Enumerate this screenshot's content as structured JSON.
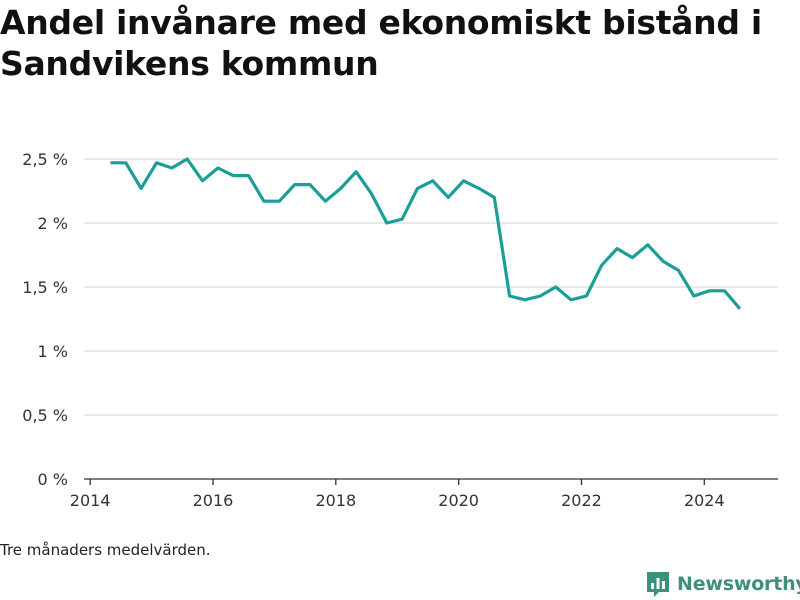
{
  "header": {
    "title": "Andel invånare med ekonomiskt bistånd i Sandvikens kommun"
  },
  "footnote": "Tre månaders medelvärden.",
  "brand": {
    "name": "Newsworthy",
    "icon": "bar-chart-logo-icon"
  },
  "colors": {
    "line": "#1a9e96",
    "grid": "#d9d9d9",
    "axis": "#333333",
    "brand": "#3f8f7f"
  },
  "chart_data": {
    "type": "line",
    "title": "Andel invånare med ekonomiskt bistånd i Sandvikens kommun",
    "xlabel": "",
    "ylabel": "",
    "xlim": [
      2013.9,
      2025.2
    ],
    "ylim": [
      0,
      2.5
    ],
    "grid": true,
    "x_ticks": [
      {
        "value": 2014,
        "label": "2014"
      },
      {
        "value": 2016,
        "label": "2016"
      },
      {
        "value": 2018,
        "label": "2018"
      },
      {
        "value": 2020,
        "label": "2020"
      },
      {
        "value": 2022,
        "label": "2022"
      },
      {
        "value": 2024,
        "label": "2024"
      }
    ],
    "y_ticks": [
      {
        "value": 0,
        "label": "0 %"
      },
      {
        "value": 0.5,
        "label": "0,5 %"
      },
      {
        "value": 1,
        "label": "1 %"
      },
      {
        "value": 1.5,
        "label": "1,5 %"
      },
      {
        "value": 2,
        "label": "2 %"
      },
      {
        "value": 2.5,
        "label": "2,5 %"
      }
    ],
    "series": [
      {
        "x": [
          2014.33,
          2014.58,
          2014.83,
          2015.08,
          2015.33,
          2015.58,
          2015.83,
          2016.08,
          2016.33,
          2016.58,
          2016.83,
          2017.08,
          2017.33,
          2017.58,
          2017.83,
          2018.08,
          2018.33,
          2018.58,
          2018.83,
          2019.08,
          2019.33,
          2019.58,
          2019.83,
          2020.08,
          2020.33,
          2020.58,
          2020.83,
          2021.08,
          2021.33,
          2021.58,
          2021.83,
          2022.08,
          2022.33,
          2022.58,
          2022.83,
          2023.08,
          2023.33,
          2023.58,
          2023.83,
          2024.08,
          2024.33,
          2024.58
        ],
        "values": [
          2.47,
          2.47,
          2.27,
          2.47,
          2.43,
          2.5,
          2.33,
          2.43,
          2.37,
          2.37,
          2.17,
          2.17,
          2.3,
          2.3,
          2.17,
          2.27,
          2.4,
          2.23,
          2.0,
          2.03,
          2.27,
          2.33,
          2.2,
          2.33,
          2.27,
          2.2,
          1.43,
          1.4,
          1.43,
          1.5,
          1.4,
          1.43,
          1.67,
          1.8,
          1.73,
          1.83,
          1.7,
          1.63,
          1.43,
          1.47,
          1.47,
          1.33
        ]
      }
    ]
  }
}
